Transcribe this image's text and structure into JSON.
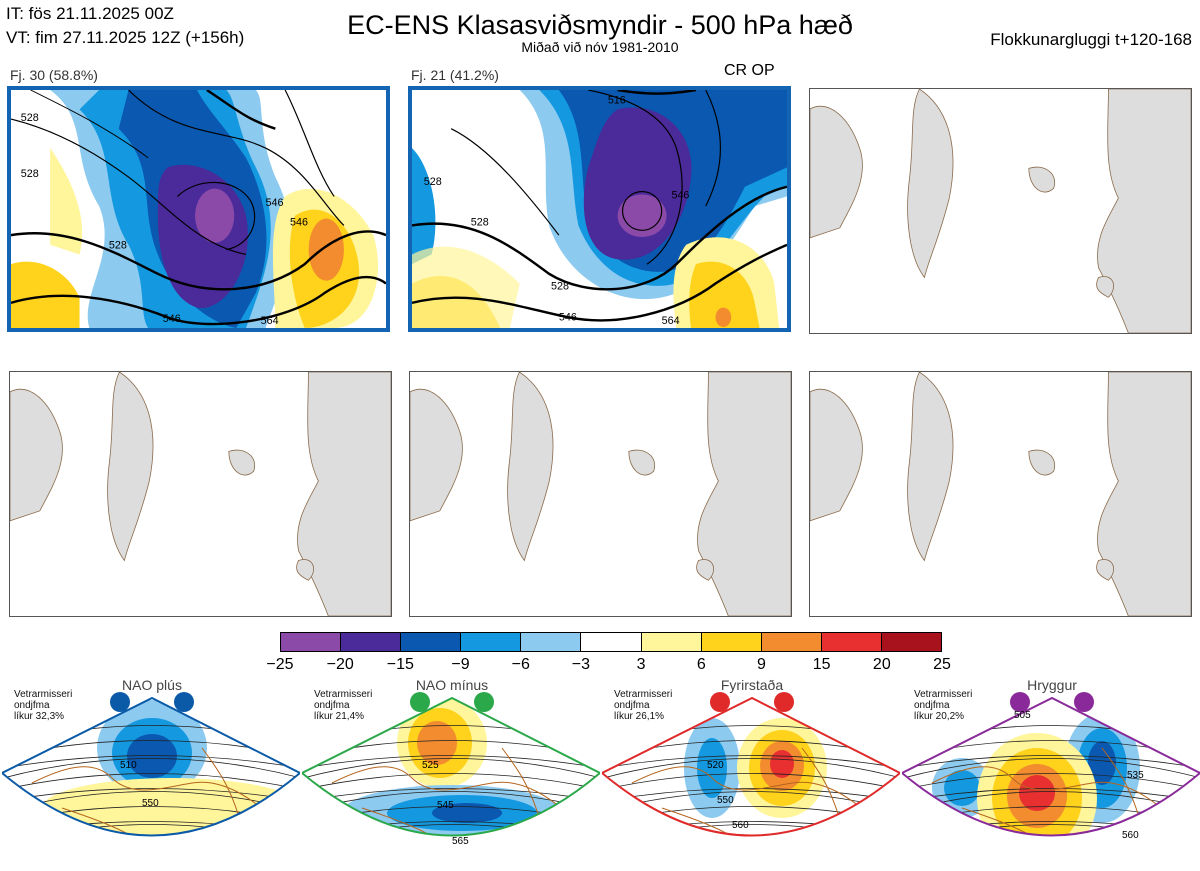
{
  "header": {
    "it_line": "IT: fös 21.11.2025 00Z",
    "vt_line": "VT: fim 27.11.2025 12Z  (+156h)",
    "title": "EC-ENS Klasasviðsmyndir - 500 hPa hæð",
    "subtitle": "Miðað við nóv 1981-2010",
    "window_label": "Flokkunargluggi t+120-168"
  },
  "panels": [
    {
      "label": "Fj. 30 (58.8%)",
      "selected": true,
      "contours": [
        "528",
        "528",
        "528",
        "546",
        "546",
        "546",
        "564"
      ]
    },
    {
      "label": "Fj. 21 (41.2%)",
      "selected": true,
      "contours": [
        "516",
        "528",
        "528",
        "528",
        "546",
        "546",
        "564"
      ]
    }
  ],
  "cr_op_label": "CR OP",
  "colorbar": {
    "colors": [
      "#8c4aa8",
      "#4b2a9a",
      "#0a58b0",
      "#1499e0",
      "#8ccaf0",
      "#ffffff",
      "#fff59a",
      "#ffd21c",
      "#f28c2e",
      "#e83030",
      "#a8121c"
    ],
    "ticks": [
      "−25",
      "−20",
      "−15",
      "−9",
      "−6",
      "−3",
      "3",
      "6",
      "9",
      "15",
      "20",
      "25"
    ]
  },
  "regimes": [
    {
      "name": "NAO plús",
      "prob_lines": [
        "Vetrarmisseri",
        "ondjfma",
        "líkur 32,3%"
      ],
      "color": "#0a5aa8",
      "contours": [
        "510",
        "550"
      ]
    },
    {
      "name": "NAO mínus",
      "prob_lines": [
        "Vetrarmisseri",
        "ondjfma",
        "líkur 21,4%"
      ],
      "color": "#2aa84a",
      "contours": [
        "525",
        "545",
        "565"
      ]
    },
    {
      "name": "Fyrirstaða",
      "prob_lines": [
        "Vetrarmisseri",
        "ondjfma",
        "líkur 26,1%"
      ],
      "color": "#e02a2a",
      "contours": [
        "520",
        "550",
        "560"
      ]
    },
    {
      "name": "Hryggur",
      "prob_lines": [
        "Vetrarmisseri",
        "ondjfma",
        "líkur 20,2%"
      ],
      "color": "#8a2a9a",
      "contours": [
        "505",
        "535",
        "560"
      ]
    }
  ]
}
